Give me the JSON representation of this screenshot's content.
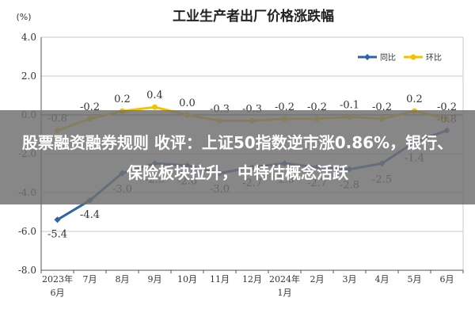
{
  "colors": {
    "yoy": "#2f62a8",
    "mom": "#f2c400",
    "grid": "#c9c9c9",
    "overlay": "#6e6e6e"
  },
  "overlay": {
    "headline": "股票融资融券规则 收评：上证50指数逆市涨0.86%，银行、保险板块拉升，中特估概念活跃"
  },
  "chart_data": {
    "type": "line",
    "title": "工业生产者出厂价格涨跌幅",
    "unit_label": "(%)",
    "categories": [
      [
        "2023年",
        "6月"
      ],
      [
        "7月"
      ],
      [
        "8月"
      ],
      [
        "9月"
      ],
      [
        "10月"
      ],
      [
        "11月"
      ],
      [
        "12月"
      ],
      [
        "2024年",
        "1月"
      ],
      [
        "2月"
      ],
      [
        "3月"
      ],
      [
        "4月"
      ],
      [
        "5月"
      ],
      [
        "6月"
      ]
    ],
    "y_ticks": [
      "4.0",
      "2.0",
      "0.0",
      "-2.0",
      "-4.0",
      "-6.0",
      "-8.0"
    ],
    "ylim": [
      -8,
      4
    ],
    "grid": true,
    "legend_position": "top-right",
    "series": [
      {
        "name": "同比",
        "color_key": "yoy",
        "values": [
          -5.4,
          -4.4,
          -3.0,
          -2.5,
          -2.6,
          -3.0,
          -2.7,
          -2.5,
          -2.7,
          -2.8,
          -2.5,
          -1.4,
          -0.8
        ],
        "labels": [
          "-5.4",
          "-4.4",
          "-3.0",
          "-2.5",
          "-2.6",
          "-3.0",
          "-2.7",
          "-2.5",
          "-2.7",
          "-2.8",
          "-2.5",
          "-1.4",
          "-0.8"
        ]
      },
      {
        "name": "环比",
        "color_key": "mom",
        "values": [
          -0.8,
          -0.2,
          0.2,
          0.4,
          0.0,
          -0.3,
          -0.3,
          -0.2,
          -0.2,
          -0.1,
          -0.2,
          0.2,
          -0.2
        ],
        "labels": [
          "-0.8",
          "-0.2",
          "0.2",
          "0.4",
          "0.0",
          "-0.3",
          "-0.3",
          "-0.2",
          "-0.2",
          "-0.1",
          "-0.2",
          "0.2",
          "-0.2"
        ]
      }
    ]
  }
}
